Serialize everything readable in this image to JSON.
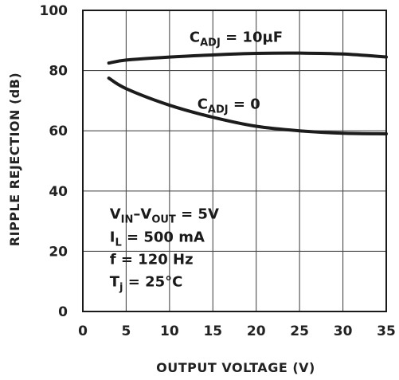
{
  "chart_data": {
    "type": "line",
    "xlabel": "OUTPUT VOLTAGE (V)",
    "ylabel": "RIPPLE REJECTION (dB)",
    "xlim": [
      0,
      35
    ],
    "ylim": [
      0,
      100
    ],
    "x_ticks": [
      "0",
      "5",
      "10",
      "15",
      "20",
      "25",
      "30",
      "35"
    ],
    "y_ticks": [
      "0",
      "20",
      "40",
      "60",
      "80",
      "100"
    ],
    "grid": true,
    "series": [
      {
        "name": "CADJ = 10µF",
        "x": [
          3,
          5,
          10,
          15,
          20,
          25,
          30,
          35
        ],
        "y": [
          82.5,
          83.5,
          84.5,
          85.2,
          85.7,
          85.8,
          85.5,
          84.5
        ]
      },
      {
        "name": "CADJ = 0",
        "x": [
          3,
          5,
          10,
          15,
          20,
          25,
          30,
          35
        ],
        "y": [
          77.5,
          74,
          68.5,
          64.5,
          61.5,
          60,
          59.2,
          59
        ]
      }
    ],
    "curve_labels": [
      {
        "main": "C",
        "sub": "ADJ",
        "rest": " = 10µF",
        "x": 12.3,
        "y": 89.5
      },
      {
        "main": "C",
        "sub": "ADJ",
        "rest": " = 0",
        "x": 13.2,
        "y": 67.3
      }
    ],
    "conditions": [
      {
        "parts": [
          [
            "V",
            ""
          ],
          [
            "IN",
            "sub"
          ],
          [
            "–V",
            ""
          ],
          [
            "OUT",
            "sub"
          ],
          [
            " = 5V",
            ""
          ]
        ],
        "x": 3.1,
        "y": 30.8
      },
      {
        "parts": [
          [
            "I",
            ""
          ],
          [
            "L",
            "sub"
          ],
          [
            " = 500 mA",
            ""
          ]
        ],
        "x": 3.1,
        "y": 23.2
      },
      {
        "parts": [
          [
            "f = 120 Hz",
            ""
          ]
        ],
        "x": 3.1,
        "y": 15.7
      },
      {
        "parts": [
          [
            "T",
            ""
          ],
          [
            "j",
            "sub"
          ],
          [
            " = 25°C",
            ""
          ]
        ],
        "x": 3.1,
        "y": 8.3
      }
    ]
  }
}
